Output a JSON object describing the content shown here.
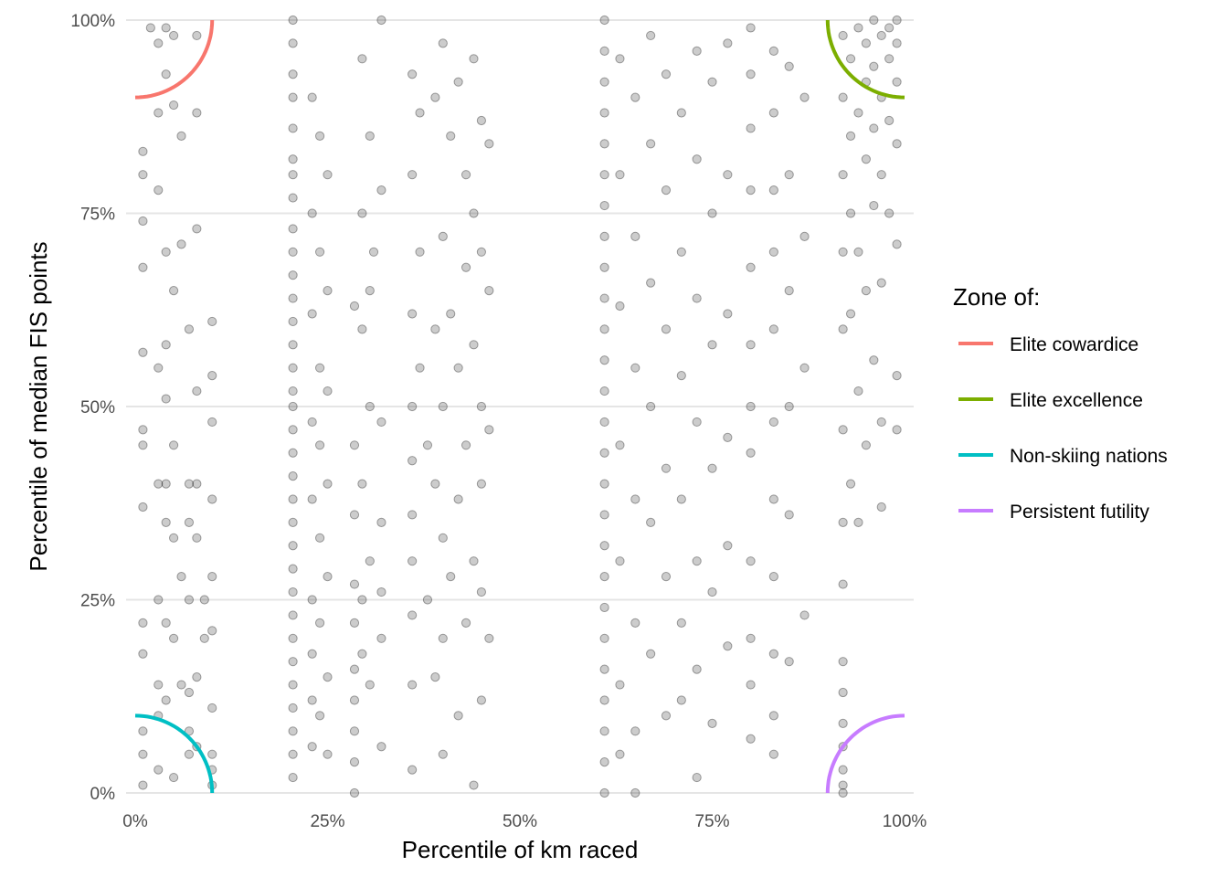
{
  "chart_data": {
    "type": "scatter",
    "title": "",
    "xlabel": "Percentile of km raced",
    "ylabel": "Percentile of median FIS points",
    "xlim": [
      0,
      100
    ],
    "ylim": [
      0,
      100
    ],
    "grid": "horizontal",
    "x_ticks": [
      0,
      25,
      50,
      75,
      100
    ],
    "x_tick_labels": [
      "0%",
      "25%",
      "50%",
      "75%",
      "100%"
    ],
    "y_ticks": [
      0,
      25,
      50,
      75,
      100
    ],
    "y_tick_labels": [
      "0%",
      "25%",
      "50%",
      "75%",
      "100%"
    ],
    "legend": {
      "title": "Zone of:",
      "placement": "right",
      "entries": [
        {
          "label": "Elite cowardice",
          "color": "#F8766D",
          "center": [
            0,
            100
          ],
          "radius": 10
        },
        {
          "label": "Elite excellence",
          "color": "#7CAE00",
          "center": [
            100,
            100
          ],
          "radius": 10
        },
        {
          "label": "Non-skiing nations",
          "color": "#00BFC4",
          "center": [
            0,
            0
          ],
          "radius": 10
        },
        {
          "label": "Persistent futility",
          "color": "#C77CFF",
          "center": [
            100,
            0
          ],
          "radius": 10
        }
      ]
    },
    "point_color": "#000000",
    "point_alpha": 0.2,
    "points": [
      [
        1,
        83
      ],
      [
        1,
        80
      ],
      [
        1,
        74
      ],
      [
        1,
        68
      ],
      [
        1,
        57
      ],
      [
        1,
        47
      ],
      [
        1,
        45
      ],
      [
        1,
        37
      ],
      [
        1,
        22
      ],
      [
        1,
        18
      ],
      [
        1,
        8
      ],
      [
        1,
        5
      ],
      [
        1,
        1
      ],
      [
        2,
        99
      ],
      [
        3,
        97
      ],
      [
        3,
        88
      ],
      [
        3,
        78
      ],
      [
        3,
        55
      ],
      [
        3,
        40
      ],
      [
        3,
        25
      ],
      [
        3,
        14
      ],
      [
        3,
        10
      ],
      [
        3,
        3
      ],
      [
        4,
        99
      ],
      [
        4,
        93
      ],
      [
        4,
        70
      ],
      [
        4,
        58
      ],
      [
        4,
        51
      ],
      [
        4,
        40
      ],
      [
        4,
        35
      ],
      [
        4,
        22
      ],
      [
        4,
        12
      ],
      [
        5,
        98
      ],
      [
        5,
        89
      ],
      [
        5,
        65
      ],
      [
        5,
        45
      ],
      [
        5,
        33
      ],
      [
        5,
        20
      ],
      [
        5,
        2
      ],
      [
        6,
        85
      ],
      [
        6,
        71
      ],
      [
        6,
        28
      ],
      [
        6,
        14
      ],
      [
        7,
        60
      ],
      [
        7,
        40
      ],
      [
        7,
        35
      ],
      [
        7,
        25
      ],
      [
        7,
        13
      ],
      [
        7,
        8
      ],
      [
        7,
        5
      ],
      [
        8,
        98
      ],
      [
        8,
        88
      ],
      [
        8,
        73
      ],
      [
        8,
        52
      ],
      [
        8,
        40
      ],
      [
        8,
        33
      ],
      [
        8,
        15
      ],
      [
        8,
        6
      ],
      [
        9,
        25
      ],
      [
        9,
        20
      ],
      [
        10,
        61
      ],
      [
        10,
        54
      ],
      [
        10,
        48
      ],
      [
        10,
        38
      ],
      [
        10,
        28
      ],
      [
        10,
        21
      ],
      [
        10,
        11
      ],
      [
        10,
        5
      ],
      [
        10,
        3
      ],
      [
        10,
        1
      ],
      [
        20.5,
        100
      ],
      [
        20.5,
        97
      ],
      [
        20.5,
        93
      ],
      [
        20.5,
        90
      ],
      [
        20.5,
        86
      ],
      [
        20.5,
        82
      ],
      [
        20.5,
        80
      ],
      [
        20.5,
        77
      ],
      [
        20.5,
        73
      ],
      [
        20.5,
        70
      ],
      [
        20.5,
        67
      ],
      [
        20.5,
        64
      ],
      [
        20.5,
        61
      ],
      [
        20.5,
        58
      ],
      [
        20.5,
        55
      ],
      [
        20.5,
        52
      ],
      [
        20.5,
        50
      ],
      [
        20.5,
        47
      ],
      [
        20.5,
        44
      ],
      [
        20.5,
        41
      ],
      [
        20.5,
        38
      ],
      [
        20.5,
        35
      ],
      [
        20.5,
        32
      ],
      [
        20.5,
        29
      ],
      [
        20.5,
        26
      ],
      [
        20.5,
        23
      ],
      [
        20.5,
        20
      ],
      [
        20.5,
        17
      ],
      [
        20.5,
        14
      ],
      [
        20.5,
        11
      ],
      [
        20.5,
        8
      ],
      [
        20.5,
        5
      ],
      [
        20.5,
        2
      ],
      [
        23,
        90
      ],
      [
        23,
        75
      ],
      [
        23,
        62
      ],
      [
        23,
        48
      ],
      [
        23,
        38
      ],
      [
        23,
        25
      ],
      [
        23,
        18
      ],
      [
        23,
        12
      ],
      [
        23,
        6
      ],
      [
        24,
        85
      ],
      [
        24,
        70
      ],
      [
        24,
        55
      ],
      [
        24,
        45
      ],
      [
        24,
        33
      ],
      [
        24,
        22
      ],
      [
        24,
        10
      ],
      [
        25,
        80
      ],
      [
        25,
        65
      ],
      [
        25,
        52
      ],
      [
        25,
        40
      ],
      [
        25,
        28
      ],
      [
        25,
        15
      ],
      [
        25,
        5
      ],
      [
        28.5,
        63
      ],
      [
        28.5,
        45
      ],
      [
        28.5,
        36
      ],
      [
        28.5,
        27
      ],
      [
        28.5,
        22
      ],
      [
        28.5,
        16
      ],
      [
        28.5,
        12
      ],
      [
        28.5,
        8
      ],
      [
        28.5,
        4
      ],
      [
        28.5,
        0
      ],
      [
        29.5,
        95
      ],
      [
        29.5,
        75
      ],
      [
        29.5,
        60
      ],
      [
        29.5,
        40
      ],
      [
        29.5,
        25
      ],
      [
        29.5,
        18
      ],
      [
        30.5,
        85
      ],
      [
        30.5,
        65
      ],
      [
        30.5,
        50
      ],
      [
        30.5,
        30
      ],
      [
        30.5,
        14
      ],
      [
        31,
        70
      ],
      [
        32,
        100
      ],
      [
        32,
        78
      ],
      [
        32,
        48
      ],
      [
        32,
        35
      ],
      [
        32,
        26
      ],
      [
        32,
        20
      ],
      [
        32,
        6
      ],
      [
        36,
        93
      ],
      [
        36,
        80
      ],
      [
        36,
        62
      ],
      [
        36,
        50
      ],
      [
        36,
        43
      ],
      [
        36,
        36
      ],
      [
        36,
        30
      ],
      [
        36,
        23
      ],
      [
        36,
        14
      ],
      [
        36,
        3
      ],
      [
        37,
        88
      ],
      [
        37,
        70
      ],
      [
        37,
        55
      ],
      [
        38,
        45
      ],
      [
        38,
        25
      ],
      [
        39,
        90
      ],
      [
        39,
        60
      ],
      [
        39,
        40
      ],
      [
        39,
        15
      ],
      [
        40,
        97
      ],
      [
        40,
        72
      ],
      [
        40,
        50
      ],
      [
        40,
        33
      ],
      [
        40,
        20
      ],
      [
        40,
        5
      ],
      [
        41,
        85
      ],
      [
        41,
        62
      ],
      [
        41,
        28
      ],
      [
        42,
        92
      ],
      [
        42,
        55
      ],
      [
        42,
        38
      ],
      [
        42,
        10
      ],
      [
        43,
        80
      ],
      [
        43,
        68
      ],
      [
        43,
        45
      ],
      [
        43,
        22
      ],
      [
        44,
        95
      ],
      [
        44,
        75
      ],
      [
        44,
        58
      ],
      [
        44,
        30
      ],
      [
        44,
        1
      ],
      [
        45,
        87
      ],
      [
        45,
        70
      ],
      [
        45,
        50
      ],
      [
        45,
        40
      ],
      [
        45,
        26
      ],
      [
        45,
        12
      ],
      [
        46,
        84
      ],
      [
        46,
        65
      ],
      [
        46,
        47
      ],
      [
        46,
        20
      ],
      [
        61,
        100
      ],
      [
        61,
        96
      ],
      [
        61,
        92
      ],
      [
        61,
        88
      ],
      [
        61,
        84
      ],
      [
        61,
        80
      ],
      [
        61,
        76
      ],
      [
        61,
        72
      ],
      [
        61,
        68
      ],
      [
        61,
        64
      ],
      [
        61,
        60
      ],
      [
        61,
        56
      ],
      [
        61,
        52
      ],
      [
        61,
        48
      ],
      [
        61,
        44
      ],
      [
        61,
        40
      ],
      [
        61,
        36
      ],
      [
        61,
        32
      ],
      [
        61,
        28
      ],
      [
        61,
        24
      ],
      [
        61,
        20
      ],
      [
        61,
        16
      ],
      [
        61,
        12
      ],
      [
        61,
        8
      ],
      [
        61,
        4
      ],
      [
        61,
        0
      ],
      [
        63,
        95
      ],
      [
        63,
        80
      ],
      [
        63,
        63
      ],
      [
        63,
        45
      ],
      [
        63,
        30
      ],
      [
        63,
        14
      ],
      [
        63,
        5
      ],
      [
        65,
        90
      ],
      [
        65,
        72
      ],
      [
        65,
        55
      ],
      [
        65,
        38
      ],
      [
        65,
        22
      ],
      [
        65,
        8
      ],
      [
        65,
        0
      ],
      [
        67,
        98
      ],
      [
        67,
        84
      ],
      [
        67,
        66
      ],
      [
        67,
        50
      ],
      [
        67,
        35
      ],
      [
        67,
        18
      ],
      [
        69,
        93
      ],
      [
        69,
        78
      ],
      [
        69,
        60
      ],
      [
        69,
        42
      ],
      [
        69,
        28
      ],
      [
        69,
        10
      ],
      [
        71,
        88
      ],
      [
        71,
        70
      ],
      [
        71,
        54
      ],
      [
        71,
        38
      ],
      [
        71,
        22
      ],
      [
        71,
        12
      ],
      [
        73,
        96
      ],
      [
        73,
        82
      ],
      [
        73,
        64
      ],
      [
        73,
        48
      ],
      [
        73,
        30
      ],
      [
        73,
        16
      ],
      [
        73,
        2
      ],
      [
        75,
        92
      ],
      [
        75,
        75
      ],
      [
        75,
        58
      ],
      [
        75,
        42
      ],
      [
        75,
        26
      ],
      [
        75,
        9
      ],
      [
        77,
        97
      ],
      [
        77,
        80
      ],
      [
        77,
        62
      ],
      [
        77,
        46
      ],
      [
        77,
        32
      ],
      [
        77,
        19
      ],
      [
        80,
        99
      ],
      [
        80,
        93
      ],
      [
        80,
        86
      ],
      [
        80,
        78
      ],
      [
        80,
        68
      ],
      [
        80,
        58
      ],
      [
        80,
        50
      ],
      [
        80,
        44
      ],
      [
        80,
        30
      ],
      [
        80,
        20
      ],
      [
        80,
        14
      ],
      [
        80,
        7
      ],
      [
        83,
        96
      ],
      [
        83,
        88
      ],
      [
        83,
        78
      ],
      [
        83,
        70
      ],
      [
        83,
        60
      ],
      [
        83,
        48
      ],
      [
        83,
        38
      ],
      [
        83,
        28
      ],
      [
        83,
        18
      ],
      [
        83,
        10
      ],
      [
        83,
        5
      ],
      [
        85,
        94
      ],
      [
        85,
        80
      ],
      [
        85,
        65
      ],
      [
        85,
        50
      ],
      [
        85,
        36
      ],
      [
        85,
        17
      ],
      [
        87,
        90
      ],
      [
        87,
        72
      ],
      [
        87,
        55
      ],
      [
        87,
        23
      ],
      [
        92,
        98
      ],
      [
        92,
        90
      ],
      [
        92,
        80
      ],
      [
        92,
        70
      ],
      [
        92,
        60
      ],
      [
        92,
        47
      ],
      [
        92,
        35
      ],
      [
        92,
        27
      ],
      [
        92,
        17
      ],
      [
        92,
        13
      ],
      [
        92,
        9
      ],
      [
        92,
        6
      ],
      [
        92,
        3
      ],
      [
        92,
        1
      ],
      [
        92,
        0
      ],
      [
        93,
        95
      ],
      [
        93,
        85
      ],
      [
        93,
        75
      ],
      [
        93,
        62
      ],
      [
        93,
        40
      ],
      [
        94,
        99
      ],
      [
        94,
        88
      ],
      [
        94,
        70
      ],
      [
        94,
        52
      ],
      [
        94,
        35
      ],
      [
        95,
        97
      ],
      [
        95,
        92
      ],
      [
        95,
        82
      ],
      [
        95,
        65
      ],
      [
        95,
        45
      ],
      [
        96,
        100
      ],
      [
        96,
        94
      ],
      [
        96,
        86
      ],
      [
        96,
        76
      ],
      [
        96,
        56
      ],
      [
        97,
        98
      ],
      [
        97,
        90
      ],
      [
        97,
        80
      ],
      [
        97,
        66
      ],
      [
        97,
        48
      ],
      [
        97,
        37
      ],
      [
        98,
        99
      ],
      [
        98,
        95
      ],
      [
        98,
        87
      ],
      [
        98,
        75
      ],
      [
        99,
        100
      ],
      [
        99,
        97
      ],
      [
        99,
        92
      ],
      [
        99,
        84
      ],
      [
        99,
        71
      ],
      [
        99,
        54
      ],
      [
        99,
        47
      ]
    ]
  }
}
